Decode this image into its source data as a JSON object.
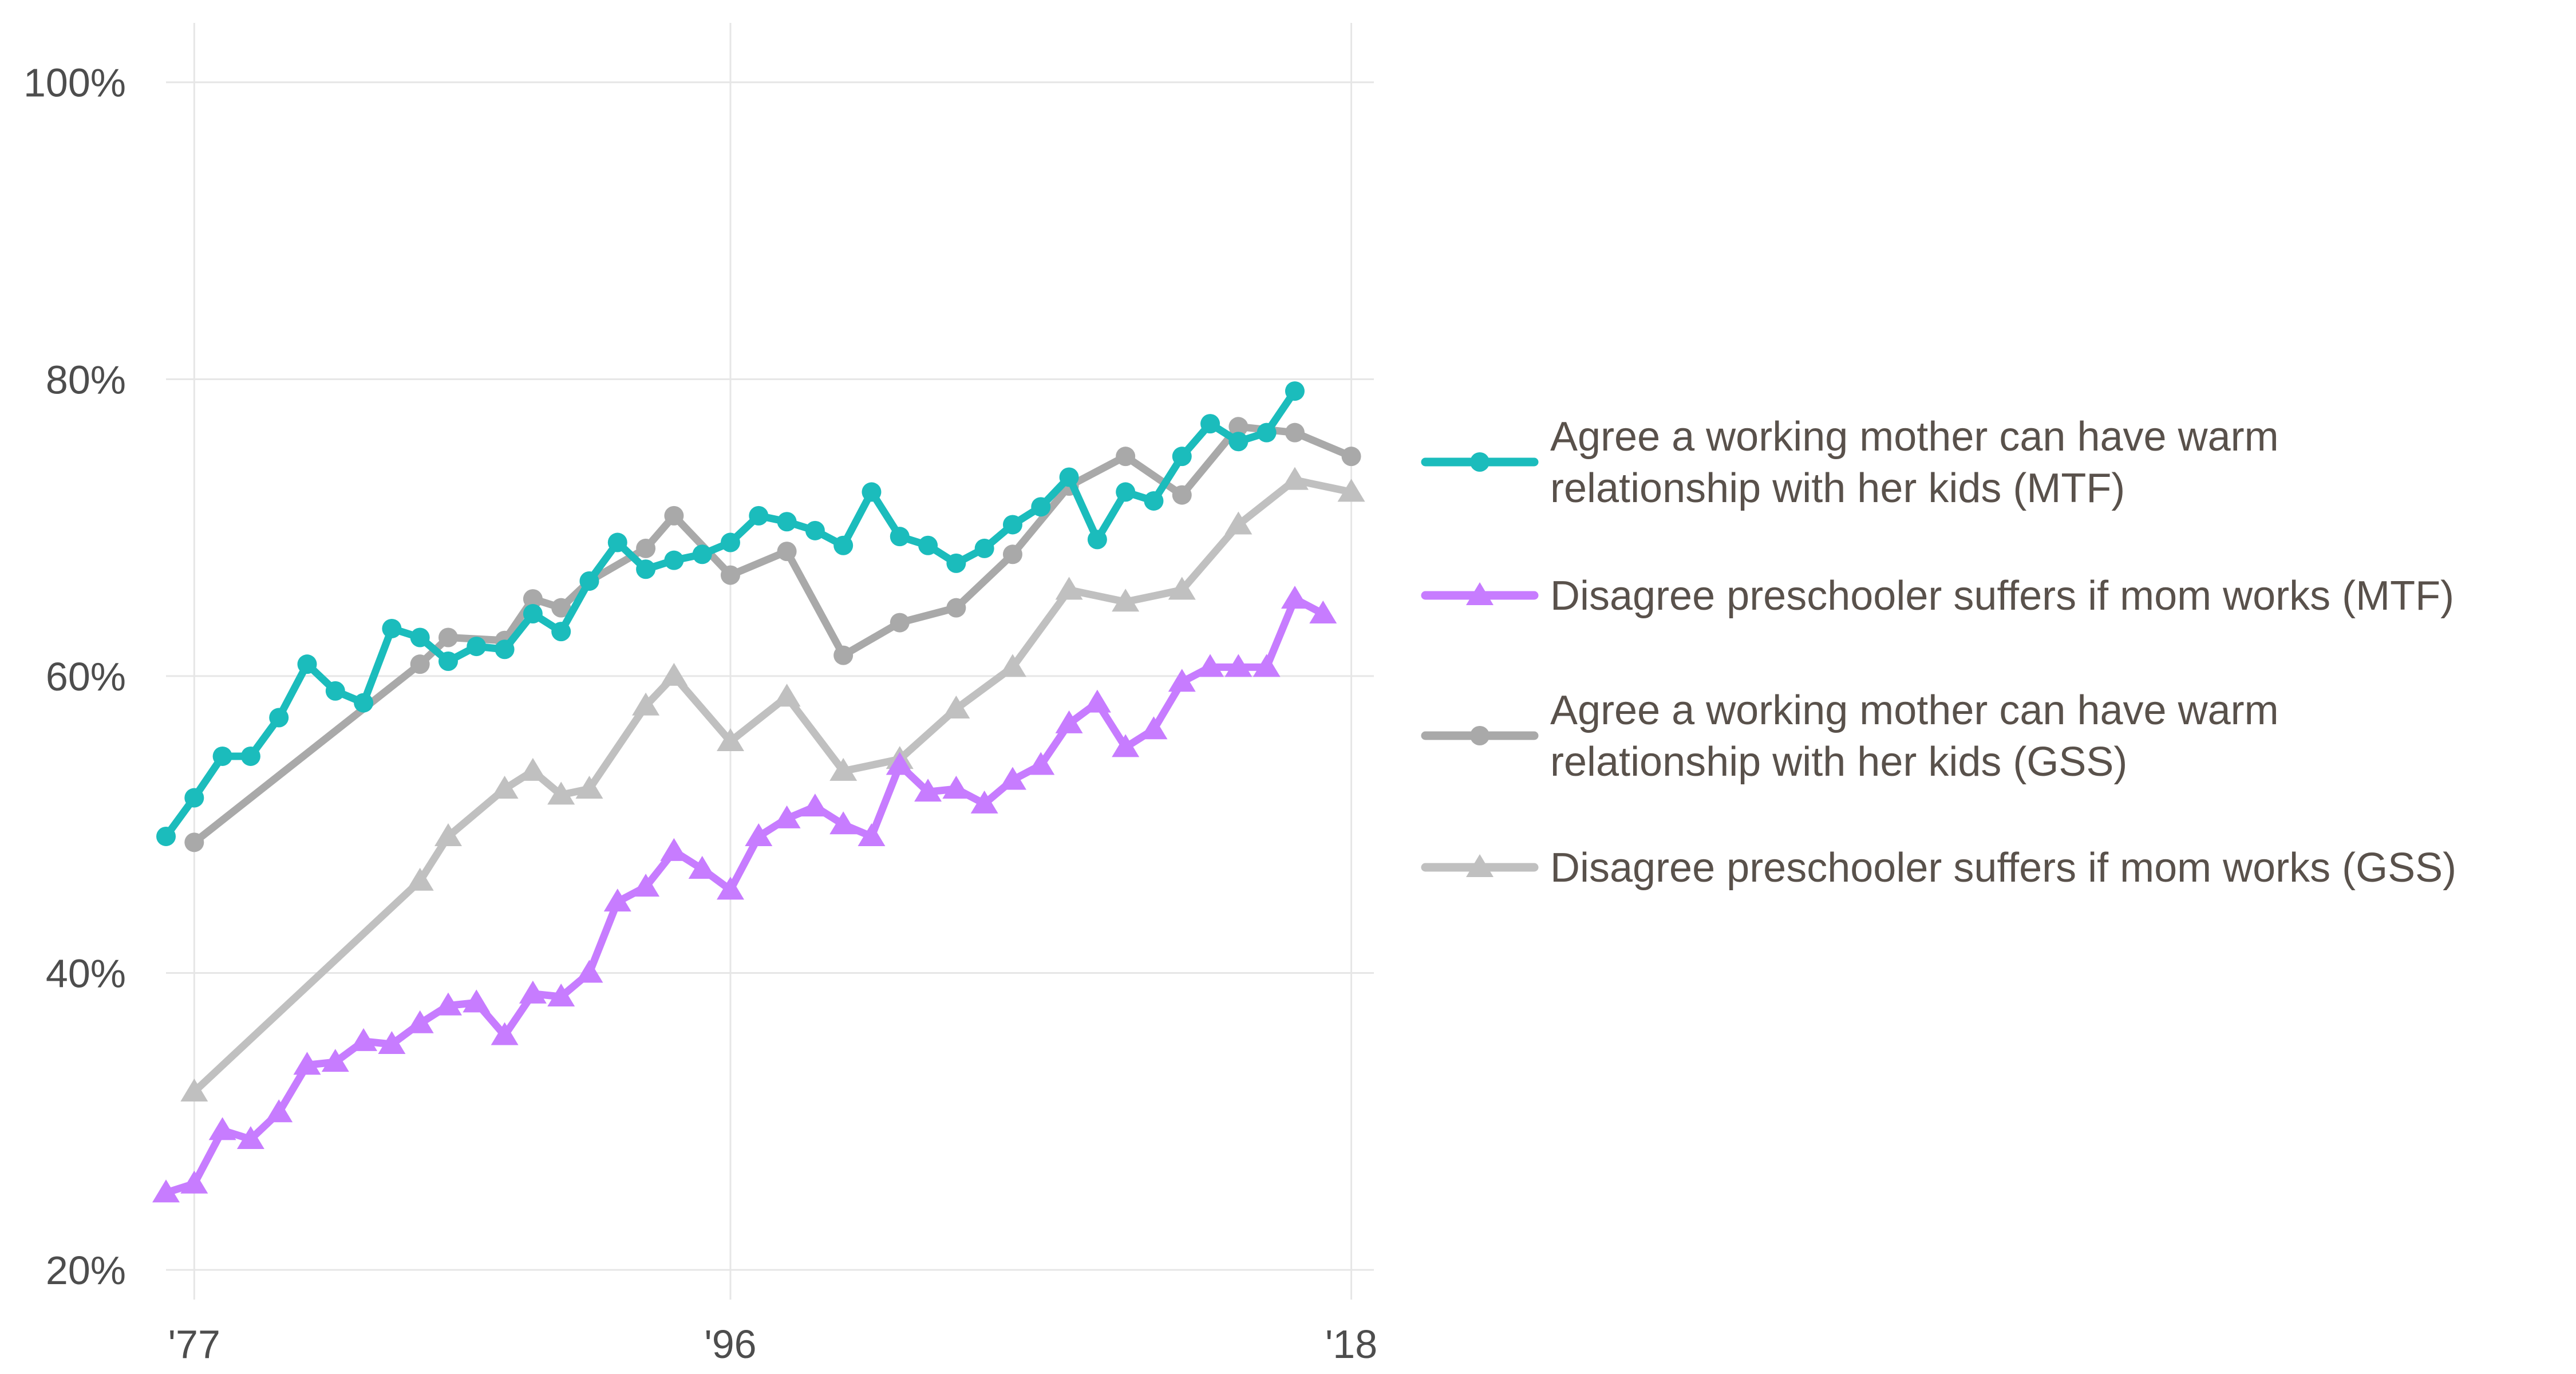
{
  "chart_data": {
    "type": "line",
    "title": "",
    "xlabel": "",
    "ylabel": "",
    "xlim": [
      1976,
      2018.8
    ],
    "ylim": [
      18,
      104
    ],
    "x_ticks": [
      {
        "value": 1977,
        "label": "'77"
      },
      {
        "value": 1996,
        "label": "'96"
      },
      {
        "value": 2018,
        "label": "'18"
      }
    ],
    "y_ticks": [
      {
        "value": 20,
        "label": "20%"
      },
      {
        "value": 40,
        "label": "40%"
      },
      {
        "value": 60,
        "label": "60%"
      },
      {
        "value": 80,
        "label": "80%"
      },
      {
        "value": 100,
        "label": "100%"
      }
    ],
    "grid": true,
    "legend_position": "right",
    "series": [
      {
        "name": "Agree a working mother can have warm relationship with her kids (MTF)",
        "legend_lines": [
          "Agree a working mother can have warm",
          "relationship with her kids (MTF)"
        ],
        "color": "#1bbcbc",
        "marker": "circle",
        "x": [
          1976,
          1977,
          1978,
          1979,
          1980,
          1981,
          1982,
          1983,
          1984,
          1985,
          1986,
          1987,
          1988,
          1989,
          1990,
          1991,
          1992,
          1993,
          1994,
          1995,
          1996,
          1997,
          1998,
          1999,
          2000,
          2001,
          2002,
          2003,
          2004,
          2005,
          2006,
          2007,
          2008,
          2009,
          2010,
          2011,
          2012,
          2013,
          2014,
          2015,
          2016,
          2017
        ],
        "y": [
          49.2,
          51.8,
          54.6,
          54.6,
          57.2,
          60.8,
          59,
          58.2,
          63.2,
          62.6,
          61,
          62,
          61.8,
          64.2,
          63,
          66.4,
          69,
          67.2,
          67.8,
          68.2,
          69,
          70.8,
          70.4,
          69.8,
          68.8,
          72.4,
          69.4,
          68.8,
          67.6,
          68.6,
          70.2,
          71.4,
          73.4,
          69.2,
          72.4,
          71.8,
          74.8,
          77,
          75.8,
          76.4,
          79.2,
          null
        ]
      },
      {
        "name": "Disagree preschooler suffers if mom works (MTF)",
        "legend_lines": [
          "Disagree preschooler suffers if mom works (MTF)"
        ],
        "color": "#c77cff",
        "marker": "triangle",
        "x": [
          1976,
          1977,
          1978,
          1979,
          1980,
          1981,
          1982,
          1983,
          1984,
          1985,
          1986,
          1987,
          1988,
          1989,
          1990,
          1991,
          1992,
          1993,
          1994,
          1995,
          1996,
          1997,
          1998,
          1999,
          2000,
          2001,
          2002,
          2003,
          2004,
          2005,
          2006,
          2007,
          2008,
          2009,
          2010,
          2011,
          2012,
          2013,
          2014,
          2015,
          2016,
          2017
        ],
        "y": [
          25.2,
          25.8,
          29.4,
          28.8,
          30.6,
          33.8,
          34,
          35.4,
          35.2,
          36.6,
          37.8,
          38,
          35.8,
          38.6,
          38.4,
          40,
          44.8,
          45.8,
          48.2,
          47,
          45.6,
          49.2,
          50.4,
          51.2,
          50,
          49.2,
          54,
          52.2,
          52.4,
          51.4,
          53,
          54,
          56.8,
          58.2,
          55.2,
          56.4,
          59.6,
          60.6,
          60.6,
          60.6,
          65.2,
          64.2
        ]
      },
      {
        "name": "Agree a working mother can have warm relationship with her kids (GSS)",
        "legend_lines": [
          "Agree a working mother can have warm",
          "relationship with her kids (GSS)"
        ],
        "color": "#a9a9a9",
        "marker": "circle",
        "x": [
          1977,
          1985,
          1986,
          1988,
          1989,
          1990,
          1991,
          1993,
          1994,
          1996,
          1998,
          2000,
          2002,
          2004,
          2006,
          2008,
          2010,
          2012,
          2014,
          2016,
          2018
        ],
        "y": [
          48.8,
          60.8,
          62.6,
          62.4,
          65.2,
          64.6,
          66.4,
          68.6,
          70.8,
          66.8,
          68.4,
          61.4,
          63.6,
          64.6,
          68.2,
          72.8,
          74.8,
          72.2,
          76.8,
          76.4,
          74.8
        ]
      },
      {
        "name": "Disagree preschooler suffers if mom works (GSS)",
        "legend_lines": [
          "Disagree preschooler suffers if mom works (GSS)"
        ],
        "color": "#c0c0c0",
        "marker": "triangle",
        "x": [
          1977,
          1985,
          1986,
          1988,
          1989,
          1990,
          1991,
          1993,
          1994,
          1996,
          1998,
          2000,
          2002,
          2004,
          2006,
          2008,
          2010,
          2012,
          2014,
          2016,
          2018
        ],
        "y": [
          32,
          46.2,
          49.2,
          52.4,
          53.6,
          52,
          52.4,
          58,
          60,
          55.6,
          58.6,
          53.6,
          54.4,
          57.8,
          60.6,
          65.8,
          65,
          65.8,
          70.2,
          73.2,
          72.4
        ]
      }
    ]
  }
}
